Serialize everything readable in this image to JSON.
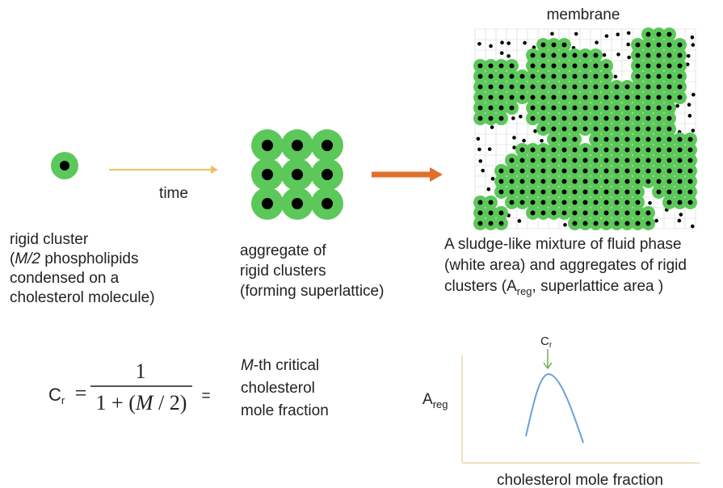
{
  "membrane_title": "membrane",
  "time_label": "time",
  "rigid_cluster": {
    "line1": "rigid cluster",
    "line2_open": "(",
    "line2_italic": "M/2",
    "line2_rest": " phospholipids",
    "line3": "condensed on a",
    "line4": "cholesterol molecule)"
  },
  "aggregate": {
    "lines": [
      "aggregate of",
      "rigid clusters",
      "(forming superlattice)"
    ]
  },
  "mixture": {
    "line1": "A sludge-like mixture of fluid phase",
    "line2": "(white area) and aggregates of rigid",
    "line3_start": "clusters (A",
    "line3_sub": "reg",
    "line3_end": ", superlattice area )"
  },
  "formula": {
    "symbol": "C",
    "symbol_sub": "r",
    "equals": "=",
    "numerator": "1",
    "den_start": "1 + (",
    "den_italic": "M",
    "den_end": " / 2)",
    "equals2": "="
  },
  "critical": {
    "start_italic": "M",
    "start_rest": "-th critical",
    "line2": "cholesterol",
    "line3": "mole fraction"
  },
  "graph": {
    "peak_label": "C",
    "peak_label_sub": "r",
    "y_label": "A",
    "y_label_sub": "reg",
    "x_label": "cholesterol mole fraction"
  }
}
